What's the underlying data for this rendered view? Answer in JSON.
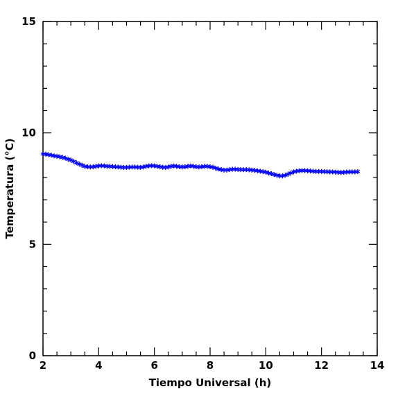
{
  "chart_data": {
    "type": "scatter",
    "title": "",
    "xlabel": "Tiempo Universal (h)",
    "ylabel": "Temperatura (°C)",
    "xlim": [
      2,
      14
    ],
    "ylim": [
      0,
      15
    ],
    "x_ticks": [
      2,
      4,
      6,
      8,
      10,
      12,
      14
    ],
    "y_ticks": [
      0,
      5,
      10,
      15
    ],
    "x_tick_labels": [
      "2",
      "4",
      "6",
      "8",
      "10",
      "12",
      "14"
    ],
    "y_tick_labels": [
      "0",
      "5",
      "10",
      "15"
    ],
    "grid": false,
    "marker": "asterisk",
    "color": "#0000ff",
    "series": [
      {
        "x": [
          2.0,
          2.1,
          2.2,
          2.3,
          2.4,
          2.5,
          2.6,
          2.7,
          2.8,
          2.9,
          3.0,
          3.1,
          3.2,
          3.3,
          3.4,
          3.5,
          3.6,
          3.7,
          3.8,
          3.9,
          4.0,
          4.1,
          4.2,
          4.3,
          4.4,
          4.5,
          4.6,
          4.7,
          4.8,
          4.9,
          5.0,
          5.1,
          5.2,
          5.3,
          5.4,
          5.5,
          5.6,
          5.7,
          5.8,
          5.9,
          6.0,
          6.1,
          6.2,
          6.3,
          6.4,
          6.5,
          6.6,
          6.7,
          6.8,
          6.9,
          7.0,
          7.1,
          7.2,
          7.3,
          7.4,
          7.5,
          7.6,
          7.7,
          7.8,
          7.9,
          8.0,
          8.1,
          8.2,
          8.3,
          8.4,
          8.5,
          8.6,
          8.7,
          8.8,
          8.9,
          9.0,
          9.1,
          9.2,
          9.3,
          9.4,
          9.5,
          9.6,
          9.7,
          9.8,
          9.9,
          10.0,
          10.1,
          10.2,
          10.3,
          10.4,
          10.5,
          10.6,
          10.7,
          10.8,
          10.9,
          11.0,
          11.1,
          11.2,
          11.3,
          11.4,
          11.5,
          11.6,
          11.7,
          11.8,
          11.9,
          12.0,
          12.1,
          12.2,
          12.3,
          12.4,
          12.5,
          12.6,
          12.7,
          12.8,
          12.9,
          13.0,
          13.1,
          13.2,
          13.3
        ],
        "y": [
          9.05,
          9.05,
          9.02,
          9.0,
          8.97,
          8.95,
          8.93,
          8.9,
          8.87,
          8.82,
          8.78,
          8.72,
          8.66,
          8.6,
          8.55,
          8.5,
          8.48,
          8.47,
          8.48,
          8.5,
          8.52,
          8.53,
          8.52,
          8.5,
          8.5,
          8.49,
          8.48,
          8.47,
          8.46,
          8.45,
          8.45,
          8.46,
          8.47,
          8.47,
          8.46,
          8.45,
          8.47,
          8.5,
          8.52,
          8.53,
          8.52,
          8.5,
          8.48,
          8.46,
          8.45,
          8.47,
          8.5,
          8.52,
          8.5,
          8.48,
          8.47,
          8.48,
          8.5,
          8.52,
          8.5,
          8.48,
          8.47,
          8.48,
          8.5,
          8.5,
          8.48,
          8.46,
          8.42,
          8.38,
          8.35,
          8.33,
          8.33,
          8.35,
          8.37,
          8.37,
          8.36,
          8.35,
          8.35,
          8.35,
          8.34,
          8.33,
          8.32,
          8.3,
          8.28,
          8.26,
          8.24,
          8.2,
          8.17,
          8.13,
          8.1,
          8.07,
          8.07,
          8.1,
          8.15,
          8.2,
          8.25,
          8.28,
          8.3,
          8.31,
          8.31,
          8.3,
          8.29,
          8.28,
          8.27,
          8.27,
          8.27,
          8.26,
          8.26,
          8.25,
          8.25,
          8.24,
          8.23,
          8.22,
          8.23,
          8.24,
          8.25,
          8.25,
          8.25,
          8.26
        ]
      }
    ]
  }
}
